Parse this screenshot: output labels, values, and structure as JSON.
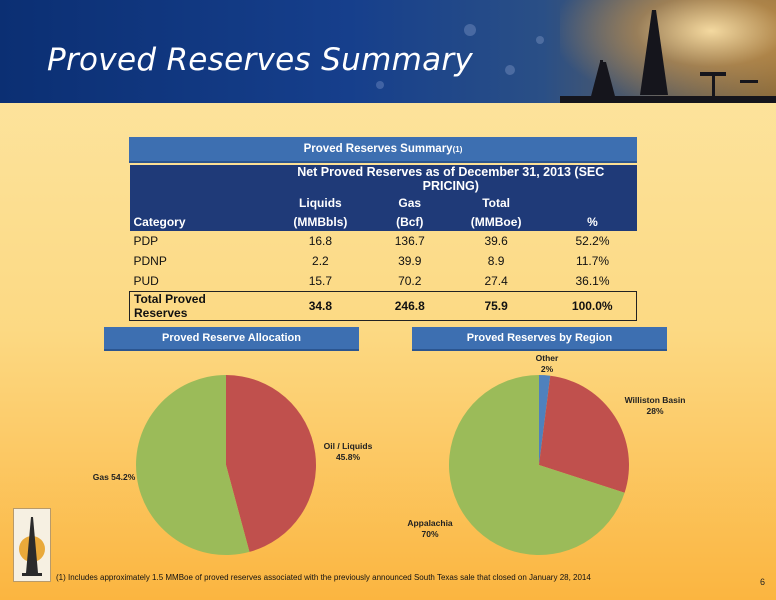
{
  "title": "Proved Reserves Summary",
  "page_number": "6",
  "footnote": "(1) Includes approximately 1.5 MMBoe of proved reserves associated with the previously announced South Texas sale that closed on January 28, 2014",
  "table": {
    "title": "Proved Reserves Summary",
    "title_sup": "(1)",
    "group_header": "Net Proved Reserves as of December 31, 2013 (SEC PRICING)",
    "col_top": [
      "",
      "Liquids",
      "Gas",
      "Total",
      ""
    ],
    "col_bottom": [
      "Category",
      "(MMBbls)",
      "(Bcf)",
      "(MMBoe)",
      "%"
    ],
    "rows": [
      [
        "PDP",
        "16.8",
        "136.7",
        "39.6",
        "52.2%"
      ],
      [
        "PDNP",
        "2.2",
        "39.9",
        "8.9",
        "11.7%"
      ],
      [
        "PUD",
        "15.7",
        "70.2",
        "27.4",
        "36.1%"
      ],
      [
        "Total Proved Reserves",
        "34.8",
        "246.8",
        "75.9",
        "100.0%"
      ]
    ]
  },
  "charts": {
    "allocation_title": "Proved Reserve Allocation",
    "region_title": "Proved Reserves by Region"
  },
  "chart_data": [
    {
      "type": "pie",
      "title": "Proved Reserve Allocation",
      "slices": [
        {
          "label": "Oil / Liquids",
          "value_label": "45.8%",
          "value": 45.8,
          "color": "#c0504d"
        },
        {
          "label": "Gas 54.2%",
          "value_label": "",
          "value": 54.2,
          "color": "#9bbb59"
        }
      ]
    },
    {
      "type": "pie",
      "title": "Proved Reserves by Region",
      "slices": [
        {
          "label": "Other",
          "value_label": "2%",
          "value": 2,
          "color": "#4f81bd"
        },
        {
          "label": "Williston Basin",
          "value_label": "28%",
          "value": 28,
          "color": "#c0504d"
        },
        {
          "label": "Appalachia",
          "value_label": "70%",
          "value": 70,
          "color": "#9bbb59"
        }
      ]
    }
  ]
}
